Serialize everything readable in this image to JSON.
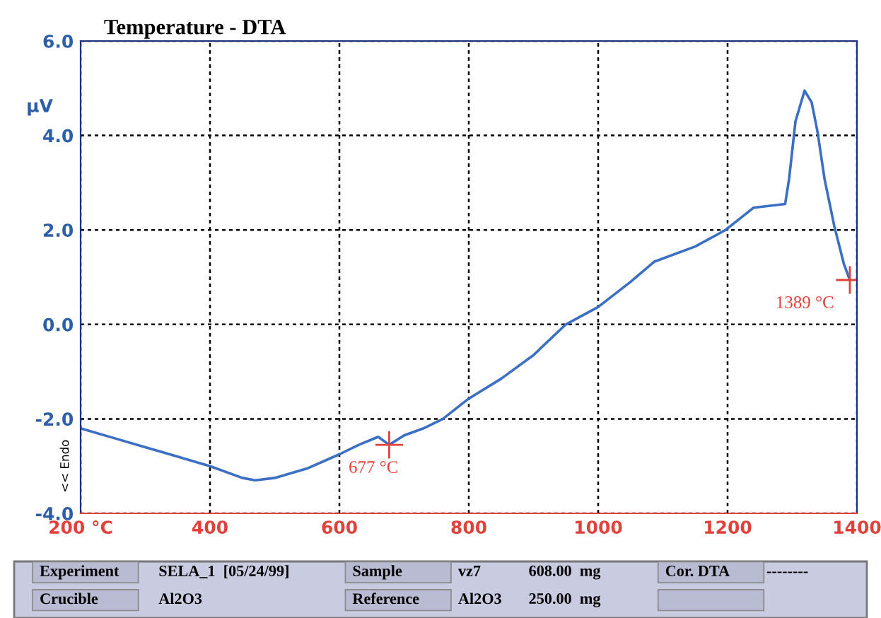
{
  "chart_data": {
    "type": "line",
    "title": "Temperature - DTA",
    "ylabel": "μV",
    "y2label": "<< Endo",
    "x": [
      200,
      250,
      300,
      350,
      400,
      450,
      470,
      500,
      550,
      600,
      630,
      660,
      677,
      700,
      730,
      760,
      800,
      850,
      900,
      950,
      1000,
      1050,
      1087,
      1150,
      1197,
      1240,
      1289,
      1295,
      1305,
      1319,
      1330,
      1339,
      1350,
      1365,
      1380,
      1389
    ],
    "series": [
      {
        "color": "#3a6fc4",
        "values": [
          -2.2,
          -2.4,
          -2.6,
          -2.8,
          -3.0,
          -3.25,
          -3.3,
          -3.25,
          -3.05,
          -2.75,
          -2.55,
          -2.38,
          -2.55,
          -2.35,
          -2.2,
          -2.0,
          -1.57,
          -1.15,
          -0.65,
          0.0,
          0.37,
          0.9,
          1.33,
          1.65,
          2.0,
          2.47,
          2.55,
          3.07,
          4.3,
          4.95,
          4.7,
          4.08,
          3.07,
          2.08,
          1.27,
          0.94
        ]
      }
    ],
    "xlim": [
      200,
      1400
    ],
    "ylim": [
      -4.0,
      6.0
    ],
    "xticks": [
      {
        "value": 200,
        "label": "200 °C"
      },
      400,
      600,
      800,
      1000,
      1200,
      1400
    ],
    "yticks": [
      {
        "value": -4,
        "label": "-4.0"
      },
      {
        "value": -2,
        "label": "-2.0"
      },
      {
        "value": 0,
        "label": "0.0"
      },
      {
        "value": 2,
        "label": "2.0"
      },
      {
        "value": 4,
        "label": "4.0"
      },
      {
        "value": 6,
        "label": "6.0"
      }
    ],
    "grid": true,
    "line_style": "solid",
    "marker": "none",
    "legend": false,
    "annotations": [
      {
        "text": "677 °C",
        "x": 677,
        "y": -2.55
      },
      {
        "text": "1389 °C",
        "x": 1389,
        "y": 0.94
      },
      "Experiment",
      "SELA_1  [05/24/99]",
      "Sample",
      "vz7",
      "608.00  mg",
      "Cor. DTA",
      "--------",
      "Crucible",
      "Al2O3",
      "Reference",
      "Al2O3",
      "250.00  mg"
    ]
  }
}
